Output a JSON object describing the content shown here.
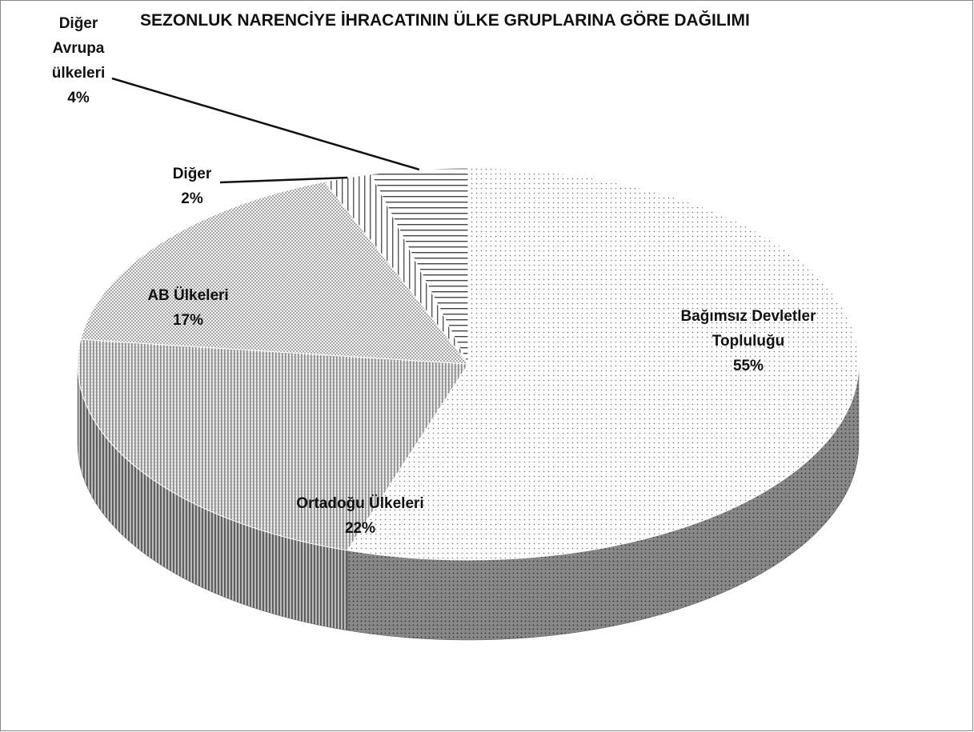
{
  "chart_data": {
    "type": "pie",
    "title": "SEZONLUK NARENCİYE İHRACATININ ÜLKE GRUPLARINA GÖRE DAĞILIMI",
    "categories": [
      "Bağımsız Devletler Topluluğu",
      "Ortadoğu Ülkeleri",
      "AB Ülkeleri",
      "Diğer",
      "Diğer Avrupa ülkeleri"
    ],
    "values": [
      55,
      22,
      17,
      2,
      4
    ],
    "value_labels": [
      "55%",
      "22%",
      "17%",
      "2%",
      "4%"
    ]
  }
}
